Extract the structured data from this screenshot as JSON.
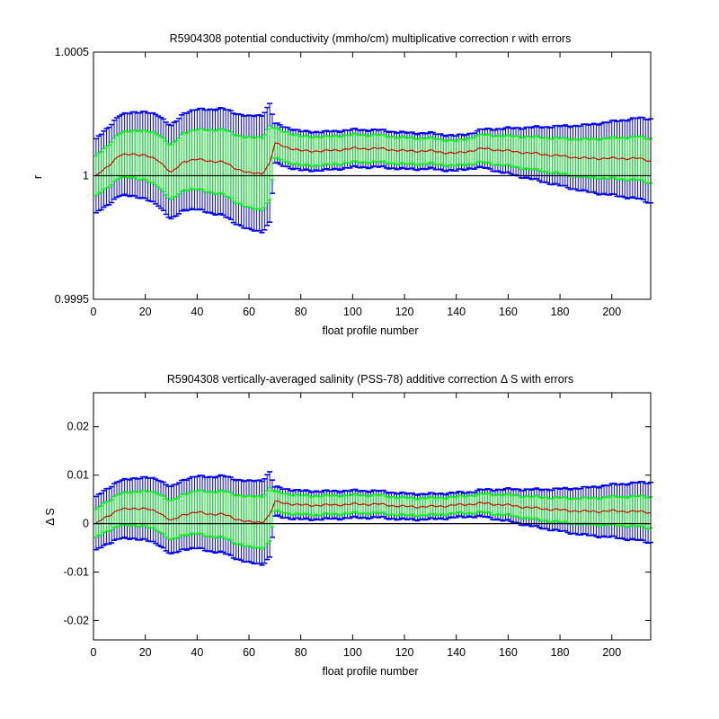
{
  "colors": {
    "outer_error": "#0000ff",
    "inner_error": "#00ff00",
    "mean_line": "#cc0000",
    "zero_line": "#000000",
    "axes": "#000000",
    "background": "#ffffff"
  },
  "chart_data": [
    {
      "type": "line",
      "title": "R5904308 potential conductivity (mmho/cm) multiplicative correction r with errors",
      "xlabel": "float profile number",
      "ylabel": "r",
      "xlim": [
        0,
        215
      ],
      "ylim": [
        0.9995,
        1.0005
      ],
      "xticks": [
        0,
        20,
        40,
        60,
        80,
        100,
        120,
        140,
        160,
        180,
        200
      ],
      "xtick_labels": [
        "0",
        "20",
        "40",
        "60",
        "80",
        "100",
        "120",
        "140",
        "160",
        "180",
        "200"
      ],
      "yticks": [
        0.9995,
        1.0,
        1.0005
      ],
      "ytick_labels": [
        "0.9995",
        "1",
        "1.0005"
      ],
      "reference_line": 1.0,
      "grid": false,
      "legend": "none",
      "series": [
        {
          "role": "mean",
          "x": [
            1,
            5,
            10,
            15,
            20,
            25,
            30,
            35,
            40,
            45,
            50,
            55,
            60,
            65,
            68,
            70,
            80,
            90,
            100,
            110,
            120,
            130,
            140,
            150,
            160,
            170,
            180,
            190,
            200,
            210,
            215
          ],
          "values": [
            1.0,
            1.000035,
            1.00008,
            1.00009,
            1.00008,
            1.000065,
            1.00001,
            1.00006,
            1.000065,
            1.00006,
            1.000055,
            1.00003,
            1.00001,
            1.00001,
            1.00005,
            1.00013,
            1.0001,
            1.0001,
            1.00011,
            1.00011,
            1.0001,
            1.0001,
            1.00009,
            1.00011,
            1.0001,
            1.00009,
            1.00008,
            1.00007,
            1.00007,
            1.00007,
            1.00006
          ]
        },
        {
          "role": "inner_error_half_width",
          "x": [
            1,
            68,
            70,
            140,
            215
          ],
          "values": [
            8e-05,
            0.00015,
            6e-05,
            5e-05,
            9e-05
          ]
        },
        {
          "role": "outer_error_half_width",
          "x": [
            1,
            68,
            70,
            145,
            215
          ],
          "values": [
            0.00015,
            0.00024,
            8e-05,
            7e-05,
            0.00017
          ]
        }
      ]
    },
    {
      "type": "line",
      "title": "R5904308 vertically-averaged salinity (PSS-78) additive correction Δ S with errors",
      "xlabel": "float profile number",
      "ylabel": "Δ S",
      "xlim": [
        0,
        215
      ],
      "ylim": [
        -0.024,
        0.027
      ],
      "xticks": [
        0,
        20,
        40,
        60,
        80,
        100,
        120,
        140,
        160,
        180,
        200
      ],
      "xtick_labels": [
        "0",
        "20",
        "40",
        "60",
        "80",
        "100",
        "120",
        "140",
        "160",
        "180",
        "200"
      ],
      "yticks": [
        -0.02,
        -0.01,
        0,
        0.01,
        0.02
      ],
      "ytick_labels": [
        "-0.02",
        "-0.01",
        "0",
        "0.01",
        "0.02"
      ],
      "reference_line": 0,
      "grid": false,
      "legend": "none",
      "series": [
        {
          "role": "mean",
          "x": [
            1,
            5,
            10,
            15,
            20,
            25,
            30,
            35,
            40,
            45,
            50,
            55,
            60,
            65,
            68,
            70,
            80,
            90,
            100,
            110,
            120,
            130,
            140,
            150,
            160,
            170,
            180,
            190,
            200,
            210,
            215
          ],
          "values": [
            0.0001,
            0.0015,
            0.0028,
            0.0032,
            0.003,
            0.0025,
            0.0005,
            0.002,
            0.0023,
            0.002,
            0.0019,
            0.001,
            0.0003,
            0.0003,
            0.0018,
            0.0045,
            0.0038,
            0.0038,
            0.004,
            0.004,
            0.0035,
            0.0035,
            0.0038,
            0.0042,
            0.0038,
            0.0032,
            0.0028,
            0.0025,
            0.0026,
            0.0025,
            0.0023
          ]
        },
        {
          "role": "inner_error_half_width",
          "x": [
            1,
            68,
            70,
            140,
            215
          ],
          "values": [
            0.0029,
            0.0055,
            0.002,
            0.0017,
            0.0032
          ]
        },
        {
          "role": "outer_error_half_width",
          "x": [
            1,
            68,
            70,
            145,
            215
          ],
          "values": [
            0.0055,
            0.0088,
            0.003,
            0.0025,
            0.0062
          ]
        }
      ]
    }
  ]
}
